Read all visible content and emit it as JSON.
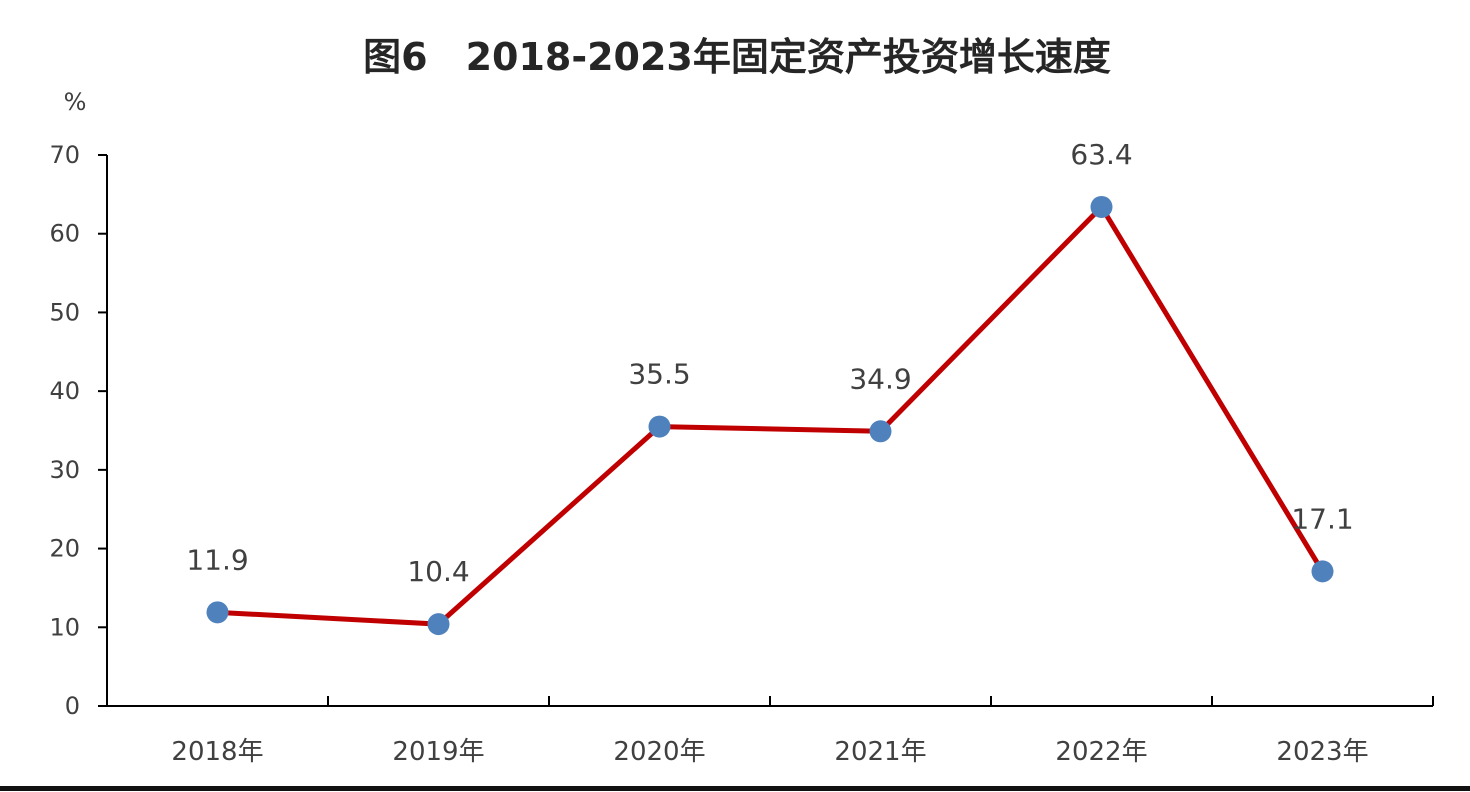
{
  "chart_data": {
    "type": "line",
    "title": "图6　2018-2023年固定资产投资增长速度",
    "xlabel": "",
    "ylabel": "",
    "y_unit": "%",
    "categories": [
      "2018年",
      "2019年",
      "2020年",
      "2021年",
      "2022年",
      "2023年"
    ],
    "series": [
      {
        "values": [
          11.9,
          10.4,
          35.5,
          34.9,
          63.4,
          17.1
        ]
      }
    ],
    "data_labels": [
      "11.9",
      "10.4",
      "35.5",
      "34.9",
      "63.4",
      "17.1"
    ],
    "ylim": [
      0,
      70
    ],
    "yticks": [
      0,
      10,
      20,
      30,
      40,
      50,
      60,
      70
    ],
    "ytick_labels": [
      "0",
      "10",
      "20",
      "30",
      "40",
      "50",
      "60",
      "70"
    ],
    "grid": false,
    "legend": "none",
    "colors": {
      "line": "#c00000",
      "marker": "#4f81bd",
      "axis": "#000000",
      "text": "#404040",
      "title": "#262626"
    }
  }
}
